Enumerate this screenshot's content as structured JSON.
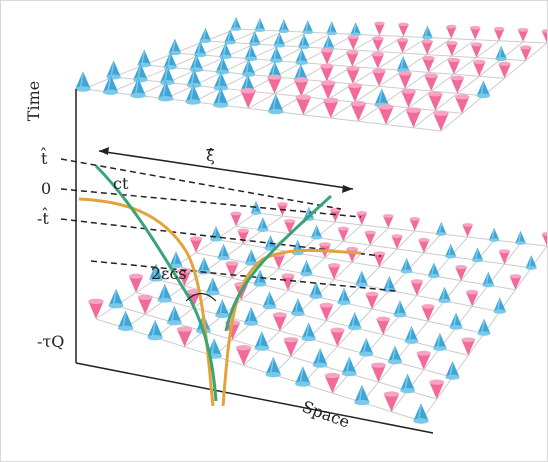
{
  "axes": {
    "time": "Time",
    "space": "Space"
  },
  "time_labels": {
    "t_hat": "t̂",
    "zero": "0",
    "minus_t_hat": "-t̂",
    "minus_tau_q": "-τQ"
  },
  "annotations": {
    "xi_hat": "ξ̂",
    "ct": "ct",
    "two_eps": "2εcs"
  }
}
